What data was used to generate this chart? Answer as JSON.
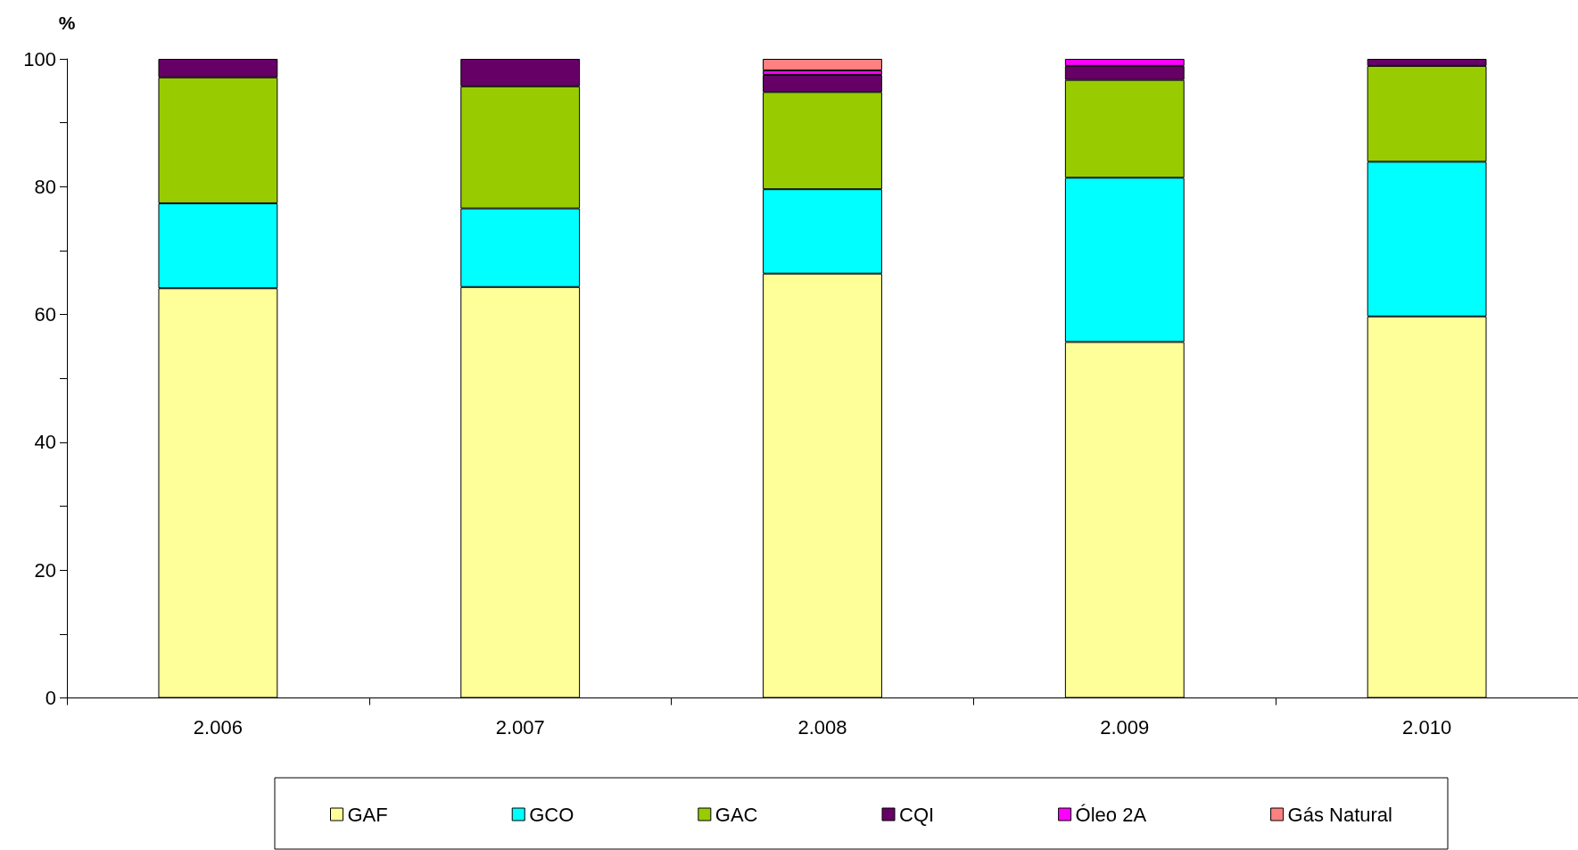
{
  "chart_data": {
    "type": "bar",
    "stacked": true,
    "ylabel": "%",
    "categories": [
      "2.006",
      "2.007",
      "2.008",
      "2.009",
      "2.010"
    ],
    "series": [
      {
        "name": "GAF",
        "color": "#ffff99",
        "values": [
          64.1,
          64.3,
          66.4,
          55.7,
          59.7
        ]
      },
      {
        "name": "GCO",
        "color": "#00ffff",
        "values": [
          13.3,
          12.3,
          13.2,
          25.7,
          24.2
        ]
      },
      {
        "name": "GAC",
        "color": "#99cc00",
        "values": [
          19.7,
          19.1,
          15.2,
          15.3,
          15.0
        ]
      },
      {
        "name": "CQI",
        "color": "#660066",
        "values": [
          2.9,
          4.3,
          2.7,
          2.2,
          1.1
        ]
      },
      {
        "name": "Óleo 2A",
        "color": "#ff00ff",
        "values": [
          null,
          null,
          0.7,
          1.1,
          null
        ]
      },
      {
        "name": "Gás Natural",
        "color": "#ff8080",
        "values": [
          null,
          null,
          1.8,
          null,
          null
        ]
      }
    ],
    "ylim": [
      0,
      100
    ],
    "yticks": [
      0,
      {
        "value": 10,
        "label": null
      },
      20,
      {
        "value": 30,
        "label": null
      },
      40,
      {
        "value": 50,
        "label": null
      },
      60,
      {
        "value": 70,
        "label": null
      },
      80,
      {
        "value": 90,
        "label": null
      },
      100
    ],
    "legend": "bottom"
  }
}
